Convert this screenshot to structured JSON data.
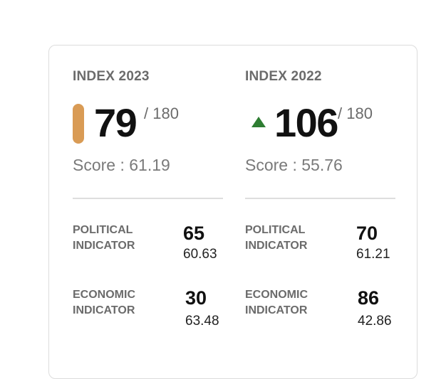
{
  "indices": [
    {
      "title": "INDEX 2023",
      "rank": "79",
      "rank_total": "/ 180",
      "marker": "orange-bar",
      "marker_color": "#d99b55",
      "score": "Score : 61.19",
      "political": {
        "label": "POLITICAL INDICATOR",
        "rank": "65",
        "score": "60.63"
      },
      "economic": {
        "label": "ECONOMIC INDICATOR",
        "rank": "30",
        "score": "63.48"
      }
    },
    {
      "title": "INDEX 2022",
      "rank": "106",
      "rank_total": "/ 180",
      "marker": "up-arrow-icon",
      "marker_color": "#2e7d32",
      "score": "Score : 55.76",
      "political": {
        "label": "POLITICAL INDICATOR",
        "rank": "70",
        "score": "61.21"
      },
      "economic": {
        "label": "ECONOMIC INDICATOR",
        "rank": "86",
        "score": "42.86"
      }
    }
  ]
}
